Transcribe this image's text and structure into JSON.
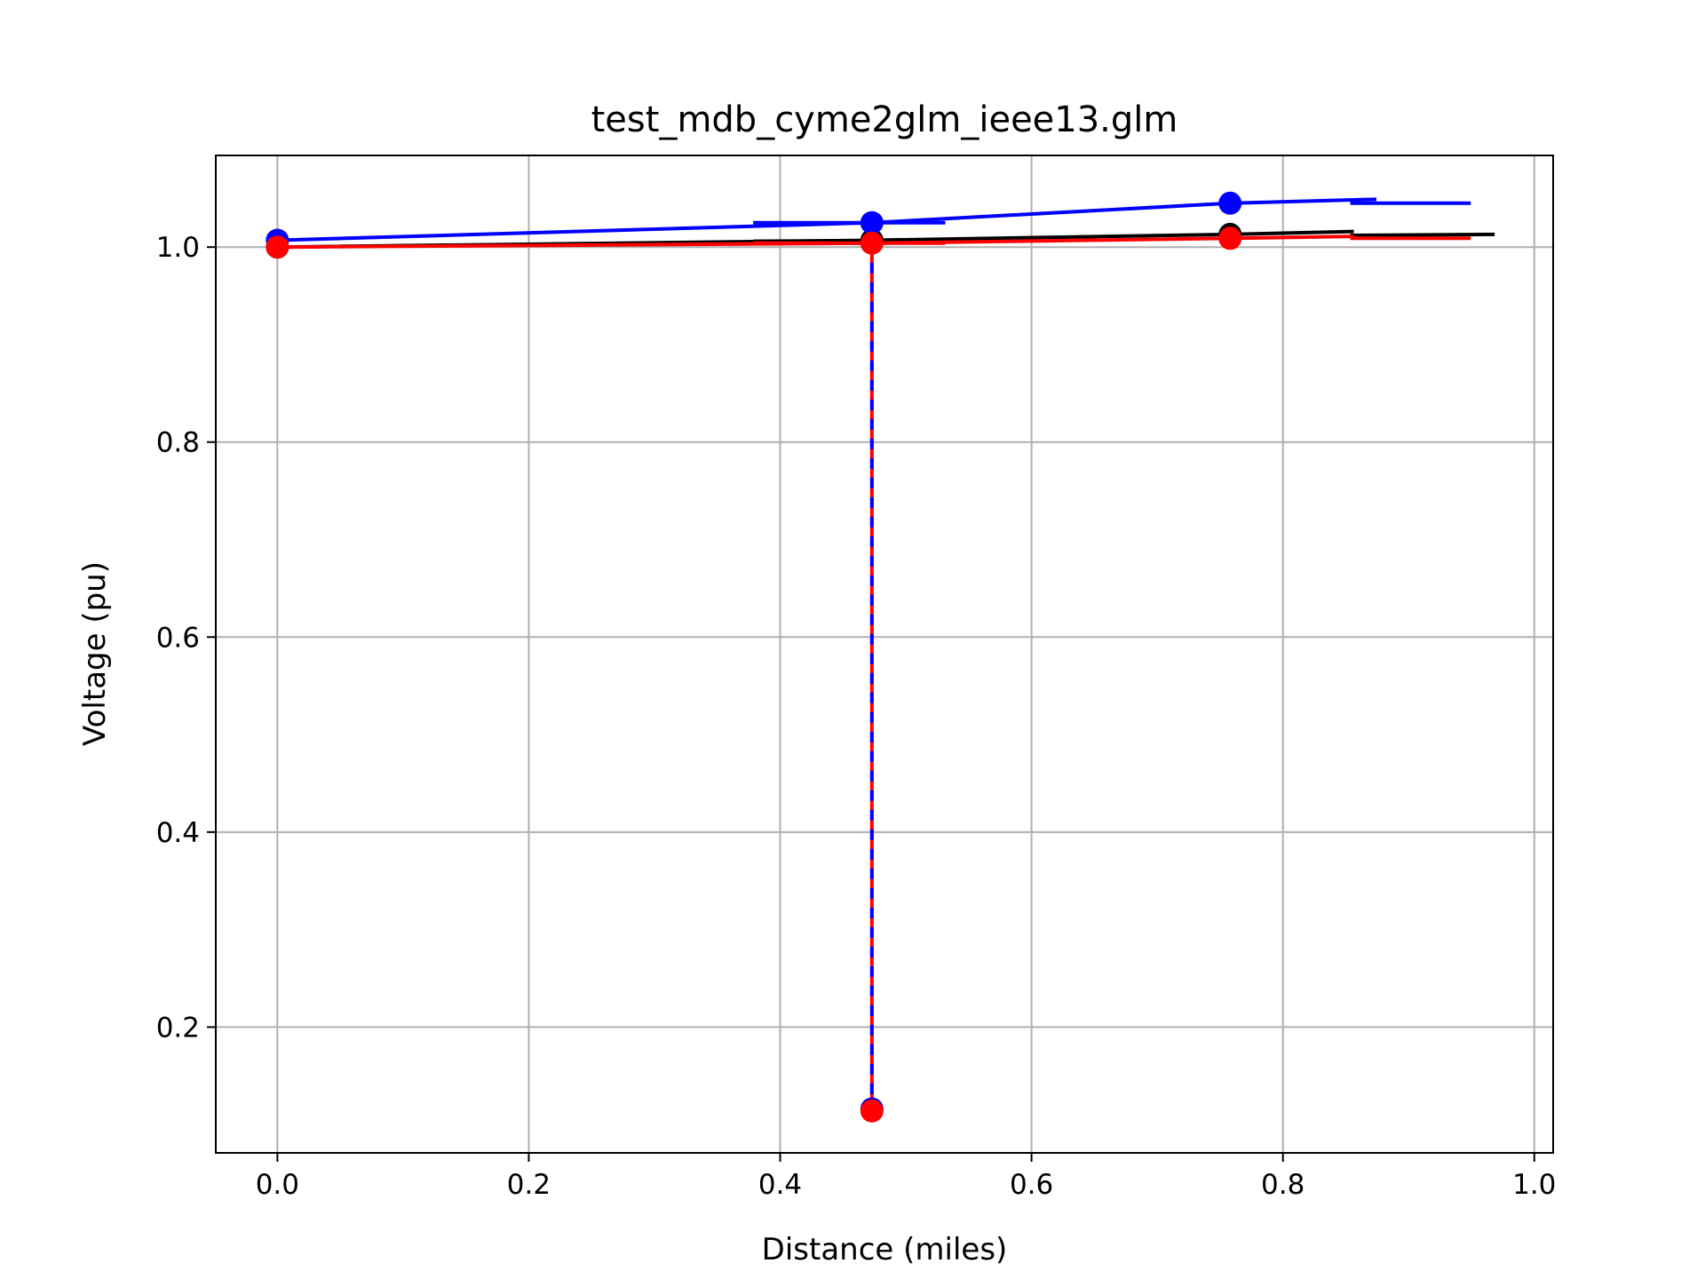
{
  "chart_data": {
    "type": "line",
    "title": "test_mdb_cyme2glm_ieee13.glm",
    "xlabel": "Distance (miles)",
    "ylabel": "Voltage (pu)",
    "xlim": [
      -0.049,
      1.015
    ],
    "ylim": [
      0.071,
      1.094
    ],
    "xticks": [
      0.0,
      0.2,
      0.4,
      0.6,
      0.8,
      1.0
    ],
    "xtick_labels": [
      "0.0",
      "0.2",
      "0.4",
      "0.6",
      "0.8",
      "1.0"
    ],
    "yticks": [
      0.2,
      0.4,
      0.6,
      0.8,
      1.0
    ],
    "ytick_labels": [
      "0.2",
      "0.4",
      "0.6",
      "0.8",
      "1.0"
    ],
    "grid": true,
    "legend": null,
    "series": [
      {
        "color": "#000000",
        "segments": [
          [
            [
              0.0,
              1.0
            ],
            [
              0.473,
              1.007
            ]
          ],
          [
            [
              0.38,
              1.006
            ],
            [
              0.53,
              1.007
            ]
          ],
          [
            [
              0.473,
              1.007
            ],
            [
              0.758,
              1.013
            ]
          ],
          [
            [
              0.758,
              1.013
            ],
            [
              0.855,
              1.016
            ]
          ],
          [
            [
              0.855,
              1.012
            ],
            [
              0.967,
              1.013
            ]
          ]
        ],
        "markers": [
          [
            0.0,
            1.0
          ],
          [
            0.473,
            1.007
          ],
          [
            0.758,
            1.013
          ]
        ]
      },
      {
        "color": "#0000ff",
        "segments": [
          [
            [
              0.0,
              1.007
            ],
            [
              0.473,
              1.025
            ]
          ],
          [
            [
              0.38,
              1.025
            ],
            [
              0.53,
              1.025
            ]
          ],
          [
            [
              0.473,
              1.025
            ],
            [
              0.758,
              1.045
            ]
          ],
          [
            [
              0.758,
              1.045
            ],
            [
              0.873,
              1.049
            ]
          ],
          [
            [
              0.855,
              1.045
            ],
            [
              0.948,
              1.045
            ]
          ]
        ],
        "markers": [
          [
            0.0,
            1.007
          ],
          [
            0.473,
            1.025
          ],
          [
            0.758,
            1.045
          ],
          [
            0.473,
            0.116
          ]
        ]
      },
      {
        "color": "#ff0000",
        "segments": [
          [
            [
              0.0,
              1.0
            ],
            [
              0.473,
              1.004
            ]
          ],
          [
            [
              0.38,
              1.004
            ],
            [
              0.53,
              1.004
            ]
          ],
          [
            [
              0.473,
              1.004
            ],
            [
              0.758,
              1.009
            ]
          ],
          [
            [
              0.758,
              1.009
            ],
            [
              0.855,
              1.011
            ]
          ],
          [
            [
              0.855,
              1.009
            ],
            [
              0.948,
              1.009
            ]
          ]
        ],
        "markers": [
          [
            0.0,
            1.0
          ],
          [
            0.473,
            1.004
          ],
          [
            0.758,
            1.009
          ],
          [
            0.473,
            0.114
          ]
        ]
      }
    ],
    "dashed_drop": {
      "x": 0.473,
      "y_from": 1.004,
      "y_to": 0.116,
      "colors": [
        "#ff0000",
        "#0000ff"
      ]
    }
  }
}
